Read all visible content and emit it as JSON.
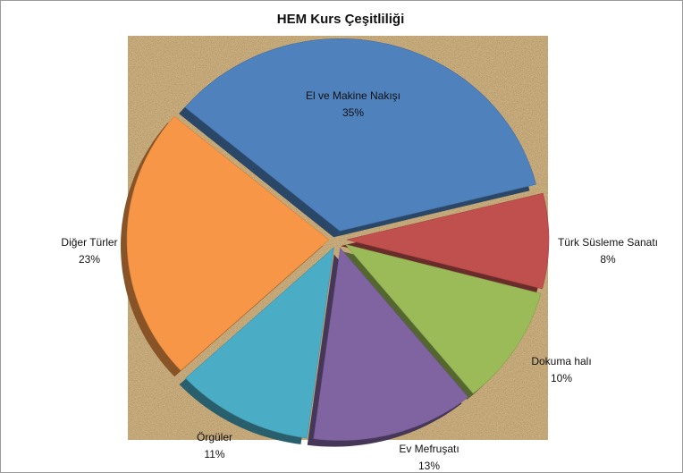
{
  "chart_data": {
    "type": "pie",
    "title": "HEM Kurs Çeşitliliği",
    "categories": [
      "El ve Makine Nakışı",
      "Türk Süsleme Sanatı",
      "Dokuma halı",
      "Ev Mefruşatı",
      "Örgüler",
      "Diğer  Türler"
    ],
    "values": [
      35,
      8,
      10,
      13,
      11,
      23
    ],
    "value_labels": [
      "35%",
      "8%",
      "10%",
      "13%",
      "11%",
      "23%"
    ],
    "colors": [
      "#4f81bd",
      "#c0504d",
      "#9bbb59",
      "#8064a2",
      "#4bacc6",
      "#f79646"
    ]
  }
}
